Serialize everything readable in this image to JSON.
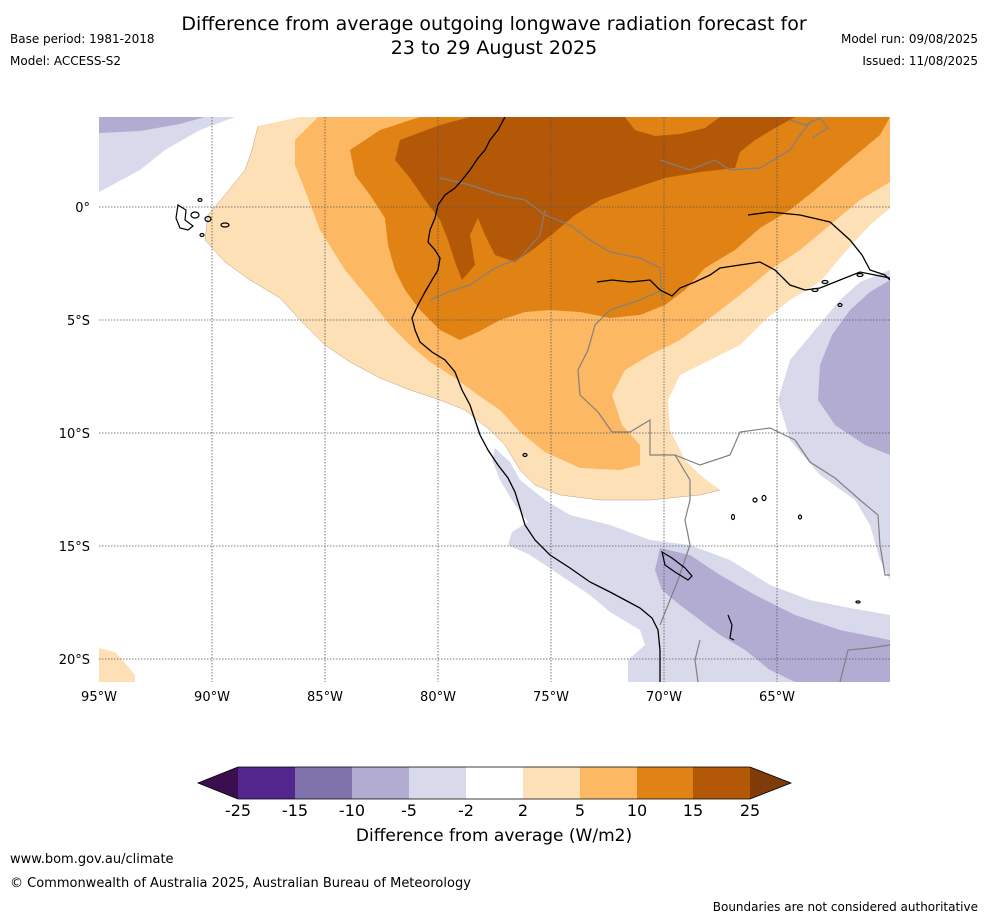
{
  "title": {
    "line1": "Difference from average outgoing longwave radiation forecast for",
    "line2": "23 to 29 August 2025"
  },
  "meta": {
    "base_period": "Base period: 1981-2018",
    "model": "Model: ACCESS-S2",
    "model_run": "Model run: 09/08/2025",
    "issued": "Issued: 11/08/2025"
  },
  "map": {
    "lon_ticks": [
      "95°W",
      "90°W",
      "85°W",
      "80°W",
      "75°W",
      "70°W",
      "65°W"
    ],
    "lat_ticks": [
      "0°",
      "5°S",
      "10°S",
      "15°S",
      "20°S"
    ],
    "gridlines": true
  },
  "colorbar": {
    "title": "Difference from average (W/m2)",
    "tick_labels": [
      "-25",
      "-15",
      "-10",
      "-5",
      "-2",
      "2",
      "5",
      "10",
      "15",
      "25"
    ],
    "colors": [
      "#3b0f4f",
      "#54278f",
      "#8073ac",
      "#b2abd2",
      "#d8daeb",
      "#ffffff",
      "#fee0b6",
      "#fdb863",
      "#e08214",
      "#b35806",
      "#7f3b08"
    ]
  },
  "footer": {
    "url": "www.bom.gov.au/climate",
    "copyright": "© Commonwealth of Australia 2025, Australian Bureau of Meteorology",
    "note": "Boundaries are not considered authoritative"
  }
}
